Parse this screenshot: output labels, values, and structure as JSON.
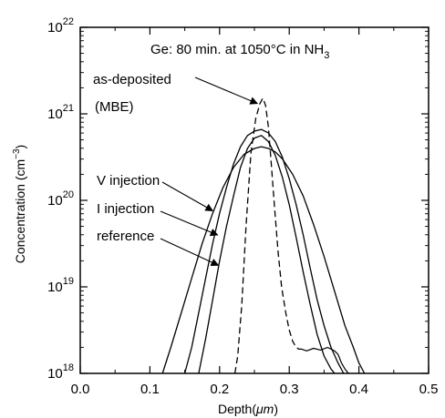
{
  "chart_data": {
    "type": "line",
    "title": "Ge: 80 min. at 1050°C in NH",
    "title_sub": "3",
    "xlabel": "Depth(",
    "xlabel_unit": "μm",
    "xlabel_close": ")",
    "ylabel": "Concentration (cm",
    "ylabel_sup": "−3",
    "ylabel_close": ")",
    "xlim": [
      0.0,
      0.5
    ],
    "ylim_log10": [
      18,
      22
    ],
    "y_scale": "log",
    "x_ticks": [
      "0.0",
      "0.1",
      "0.2",
      "0.3",
      "0.4",
      "0.5"
    ],
    "y_ticks": [
      {
        "base": "10",
        "exp": "18"
      },
      {
        "base": "10",
        "exp": "19"
      },
      {
        "base": "10",
        "exp": "20"
      },
      {
        "base": "10",
        "exp": "21"
      },
      {
        "base": "10",
        "exp": "22"
      }
    ],
    "series": [
      {
        "name": "as-deposited",
        "name2": "(MBE)",
        "style": "dashed",
        "x": [
          0.222,
          0.226,
          0.232,
          0.238,
          0.245,
          0.252,
          0.258,
          0.262,
          0.266,
          0.27,
          0.274,
          0.279,
          0.284,
          0.289,
          0.295,
          0.3,
          0.305,
          0.31,
          0.314,
          0.318
        ],
        "log10_y": [
          18.0,
          18.2,
          18.8,
          19.7,
          20.55,
          20.95,
          21.12,
          21.18,
          21.1,
          20.85,
          20.45,
          19.9,
          19.4,
          19.0,
          18.7,
          18.5,
          18.37,
          18.3,
          18.28,
          18.28
        ],
        "tail_x": [
          0.318,
          0.325,
          0.335,
          0.345,
          0.355,
          0.36,
          0.365,
          0.37,
          0.375,
          0.38,
          0.385
        ],
        "tail_log10_y": [
          18.28,
          18.26,
          18.29,
          18.27,
          18.3,
          18.28,
          18.26,
          18.22,
          18.12,
          18.05,
          18.0
        ]
      },
      {
        "name": "V injection",
        "style": "solid",
        "x": [
          0.118,
          0.13,
          0.145,
          0.16,
          0.175,
          0.19,
          0.205,
          0.22,
          0.235,
          0.25,
          0.26,
          0.27,
          0.28,
          0.29,
          0.305,
          0.32,
          0.335,
          0.35,
          0.365,
          0.38,
          0.392,
          0.4,
          0.408
        ],
        "log10_y": [
          18.0,
          18.3,
          18.7,
          19.1,
          19.5,
          19.85,
          20.15,
          20.38,
          20.53,
          20.6,
          20.62,
          20.6,
          20.56,
          20.48,
          20.3,
          20.05,
          19.72,
          19.35,
          18.95,
          18.55,
          18.3,
          18.12,
          18.0
        ]
      },
      {
        "name": "I injection",
        "style": "solid",
        "x": [
          0.15,
          0.16,
          0.17,
          0.18,
          0.19,
          0.2,
          0.21,
          0.22,
          0.23,
          0.24,
          0.25,
          0.26,
          0.27,
          0.28,
          0.29,
          0.3,
          0.31,
          0.32,
          0.33,
          0.34,
          0.35,
          0.36,
          0.37,
          0.378
        ],
        "log10_y": [
          18.0,
          18.3,
          18.7,
          19.1,
          19.5,
          19.85,
          20.15,
          20.42,
          20.62,
          20.75,
          20.8,
          20.82,
          20.78,
          20.68,
          20.5,
          20.25,
          19.95,
          19.6,
          19.22,
          18.85,
          18.55,
          18.3,
          18.12,
          18.0
        ]
      },
      {
        "name": "reference",
        "style": "solid",
        "x": [
          0.17,
          0.18,
          0.19,
          0.2,
          0.21,
          0.22,
          0.23,
          0.24,
          0.25,
          0.26,
          0.27,
          0.28,
          0.29,
          0.3,
          0.31,
          0.32,
          0.33,
          0.34,
          0.35,
          0.36,
          0.365
        ],
        "log10_y": [
          18.0,
          18.4,
          18.85,
          19.3,
          19.7,
          20.05,
          20.38,
          20.6,
          20.72,
          20.75,
          20.68,
          20.52,
          20.27,
          19.95,
          19.57,
          19.17,
          18.8,
          18.45,
          18.2,
          18.05,
          18.0
        ]
      }
    ]
  }
}
